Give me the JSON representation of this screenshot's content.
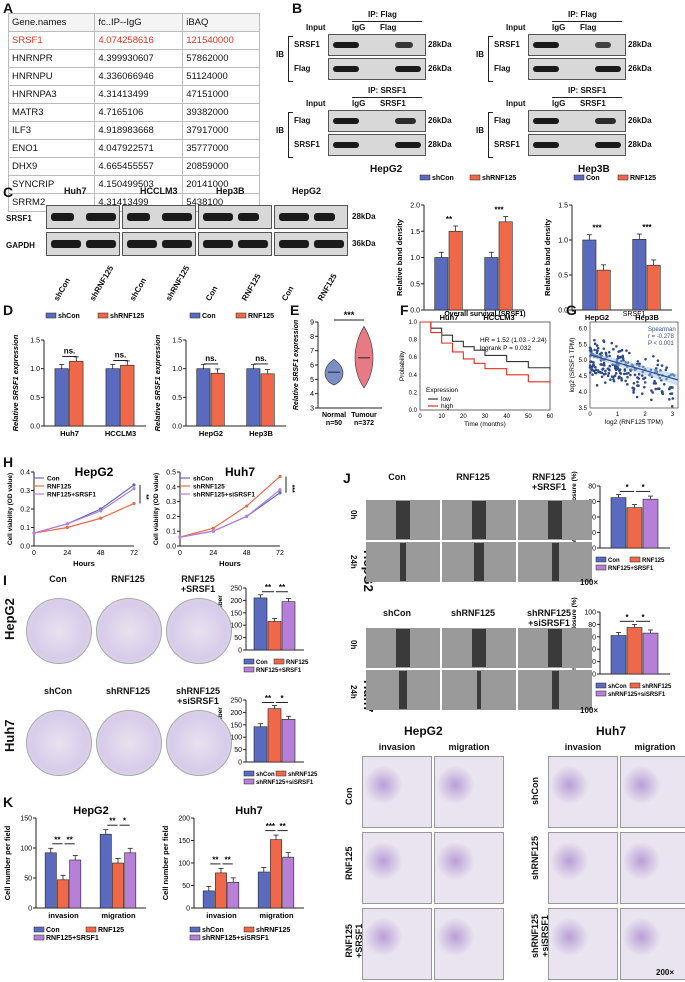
{
  "panels": {
    "A": "A",
    "B": "B",
    "C": "C",
    "D": "D",
    "E": "E",
    "F": "F",
    "G": "G",
    "H": "H",
    "I": "I",
    "J": "J",
    "K": "K"
  },
  "table_a": {
    "headers": [
      "Gene.names",
      "fc..IP--IgG",
      "iBAQ"
    ],
    "rows": [
      [
        "SRSF1",
        "4.074258616",
        "121540000"
      ],
      [
        "HNRNPR",
        "4.399930607",
        "57862000"
      ],
      [
        "HNRNPU",
        "4.336066946",
        "51124000"
      ],
      [
        "HNRNPA3",
        "4.31413499",
        "47151000"
      ],
      [
        "MATR3",
        "4.7165106",
        "39382000"
      ],
      [
        "ILF3",
        "4.918983668",
        "37917000"
      ],
      [
        "ENO1",
        "4.047922571",
        "35777000"
      ],
      [
        "DHX9",
        "4.665455557",
        "20859000"
      ],
      [
        "SYNCRIP",
        "4.150499503",
        "20141000"
      ],
      [
        "SRRM2",
        "4.31413499",
        "5438100"
      ]
    ],
    "highlight_color": "#e03020"
  },
  "panel_b": {
    "ip_flag": "IP: Flag",
    "ip_srsf1": "IP: SRSF1",
    "lanes": [
      "Input",
      "IgG",
      "Flag"
    ],
    "lanes2": [
      "Input",
      "IgG",
      "SRSF1"
    ],
    "ib": "IB",
    "rows_top": [
      "SRSF1",
      "Flag"
    ],
    "rows_bottom": [
      "Flag",
      "SRSF1"
    ],
    "kda_top": [
      "28kDa",
      "26kDa"
    ],
    "kda_bottom": [
      "26kDa",
      "28kDa"
    ],
    "cell_left": "HepG2",
    "cell_right": "Hep3B"
  },
  "panel_c": {
    "cells": [
      "Huh7",
      "HCCLM3",
      "Hep3B",
      "HepG2"
    ],
    "rows": [
      "SRSF1",
      "GAPDH"
    ],
    "kda": [
      "28kDa",
      "36kDa"
    ],
    "lanes": [
      "shCon",
      "shRNF125",
      "shCon",
      "shRNF125",
      "Con",
      "RNF125",
      "Con",
      "RNF125"
    ]
  },
  "colors": {
    "blue": "#5a6bbf",
    "red": "#f0684a",
    "purple": "#b77fd8"
  },
  "chart_data": [
    {
      "id": "C-left",
      "type": "bar",
      "categories": [
        "Huh7",
        "HCCLM3"
      ],
      "series": [
        {
          "name": "shCon",
          "values": [
            1.0,
            1.0
          ]
        },
        {
          "name": "shRNF125",
          "values": [
            1.5,
            1.68
          ]
        }
      ],
      "ylabel": "Relative band density",
      "ylim": [
        0,
        2.0
      ],
      "yticks": [
        "0.0",
        "0.5",
        "1.0",
        "1.5",
        "2.0"
      ],
      "sig": [
        "**",
        "***"
      ]
    },
    {
      "id": "C-right",
      "type": "bar",
      "categories": [
        "HepG2",
        "Hep3B"
      ],
      "series": [
        {
          "name": "Con",
          "values": [
            1.0,
            1.01
          ]
        },
        {
          "name": "RNF125",
          "values": [
            0.57,
            0.64
          ]
        }
      ],
      "ylabel": "Relative band density",
      "ylim": [
        0,
        1.5
      ],
      "yticks": [
        "0.0",
        "0.5",
        "1.0",
        "1.5"
      ],
      "sig": [
        "***",
        "***"
      ]
    },
    {
      "id": "D-left",
      "type": "bar",
      "categories": [
        "Huh7",
        "HCCLM3"
      ],
      "series": [
        {
          "name": "shCon",
          "values": [
            1.0,
            1.0
          ]
        },
        {
          "name": "shRNF125",
          "values": [
            1.13,
            1.06
          ]
        }
      ],
      "ylabel": "Relative SRSF1 expression",
      "ylim": [
        0,
        1.5
      ],
      "yticks": [
        "0.0",
        "0.5",
        "1.0",
        "1.5"
      ],
      "sig": [
        "ns.",
        "ns."
      ]
    },
    {
      "id": "D-right",
      "type": "bar",
      "categories": [
        "HepG2",
        "Hep3B"
      ],
      "series": [
        {
          "name": "Con",
          "values": [
            1.0,
            1.0
          ]
        },
        {
          "name": "RNF125",
          "values": [
            0.92,
            0.91
          ]
        }
      ],
      "ylabel": "Relative SRSF1 expression",
      "ylim": [
        0,
        1.5
      ],
      "yticks": [
        "0.0",
        "0.5",
        "1.0",
        "1.5"
      ],
      "sig": [
        "ns.",
        "ns."
      ]
    },
    {
      "id": "E",
      "type": "violin",
      "categories": [
        "Normal n=50",
        "Tumour n=372"
      ],
      "medians": [
        5.5,
        6.5
      ],
      "ylabel": "Relative SRSF1 expression",
      "ylim": [
        3,
        9
      ],
      "yticks": [
        "3",
        "4",
        "5",
        "6",
        "7",
        "8",
        "9"
      ],
      "sig": "***"
    },
    {
      "id": "F",
      "type": "line",
      "title": "Overall survival (SRSF1)",
      "annotation": [
        "HR = 1.52 (1.03 - 2.24)",
        "logrank P = 0.032"
      ],
      "xlabel": "Time (months)",
      "ylabel": "Probability",
      "xlim": [
        0,
        60
      ],
      "ylim": [
        0,
        1
      ],
      "xticks": [
        "0",
        "10",
        "20",
        "30",
        "40",
        "50",
        "60"
      ],
      "yticks": [
        "0.0",
        "0.2",
        "0.4",
        "0.6",
        "0.8",
        "1.0"
      ],
      "series": [
        {
          "name": "low",
          "color": "#333333",
          "x": [
            0,
            5,
            10,
            15,
            20,
            25,
            30,
            40,
            50,
            60
          ],
          "y": [
            1,
            0.93,
            0.85,
            0.78,
            0.72,
            0.68,
            0.62,
            0.55,
            0.48,
            0.46
          ]
        },
        {
          "name": "high",
          "color": "#e03020",
          "x": [
            0,
            5,
            10,
            15,
            20,
            25,
            30,
            40,
            50,
            60
          ],
          "y": [
            1,
            0.88,
            0.76,
            0.66,
            0.58,
            0.53,
            0.47,
            0.4,
            0.32,
            0.3
          ]
        }
      ],
      "legend_title": "Expression"
    },
    {
      "id": "G",
      "type": "scatter",
      "title": "SRSF1",
      "annotation": [
        "Spearman",
        "r = -0.278",
        "P < 0.001"
      ],
      "xlabel": "log2 (RNF125 TPM)",
      "ylabel": "log2 (SRSF1 TPM)",
      "xlim": [
        0,
        3.2
      ],
      "ylim": [
        3.5,
        6.2
      ],
      "xticks": [
        "0",
        "1",
        "2",
        "3"
      ],
      "yticks": [
        "3.5",
        "4.0",
        "4.5",
        "5.0",
        "5.5",
        "6.0"
      ]
    },
    {
      "id": "H-left",
      "type": "line",
      "title": "HepG2",
      "xlabel": "Hours",
      "ylabel": "Cell viability (OD value)",
      "x": [
        0,
        24,
        48,
        72
      ],
      "ylim": [
        0,
        0.4
      ],
      "yticks": [
        "0.0",
        "0.1",
        "0.2",
        "0.3",
        "0.4"
      ],
      "series": [
        {
          "name": "Con",
          "values": [
            0.07,
            0.12,
            0.2,
            0.33
          ]
        },
        {
          "name": "RNF125",
          "values": [
            0.07,
            0.1,
            0.15,
            0.23
          ]
        },
        {
          "name": "RNF125+SRSF1",
          "values": [
            0.07,
            0.12,
            0.19,
            0.31
          ]
        }
      ],
      "sig": [
        "**",
        "**"
      ]
    },
    {
      "id": "H-right",
      "type": "line",
      "title": "Huh7",
      "xlabel": "Hours",
      "ylabel": "Cell viability (OD value)",
      "x": [
        0,
        24,
        48,
        72
      ],
      "ylim": [
        0,
        0.5
      ],
      "yticks": [
        "0.0",
        "0.1",
        "0.2",
        "0.3",
        "0.4",
        "0.5"
      ],
      "series": [
        {
          "name": "shCon",
          "values": [
            0.06,
            0.1,
            0.2,
            0.36
          ]
        },
        {
          "name": "shRNF125",
          "values": [
            0.06,
            0.12,
            0.27,
            0.47
          ]
        },
        {
          "name": "shRNF125+siSRSF1",
          "values": [
            0.06,
            0.1,
            0.2,
            0.38
          ]
        }
      ],
      "sig": [
        "***",
        "***"
      ]
    },
    {
      "id": "I-top",
      "type": "bar",
      "categories": [
        ""
      ],
      "series": [
        {
          "name": "Con",
          "values": [
            210
          ]
        },
        {
          "name": "RNF125",
          "values": [
            115
          ]
        },
        {
          "name": "RNF125+SRSF1",
          "values": [
            195
          ]
        }
      ],
      "ylabel": "Colony number",
      "ylim": [
        0,
        250
      ],
      "yticks": [
        "0",
        "50",
        "100",
        "150",
        "200",
        "250"
      ],
      "sig": [
        "**",
        "**"
      ]
    },
    {
      "id": "I-bottom",
      "type": "bar",
      "categories": [
        ""
      ],
      "series": [
        {
          "name": "shCon",
          "values": [
            142
          ]
        },
        {
          "name": "shRNF125",
          "values": [
            215
          ]
        },
        {
          "name": "shRNF125+siSRSF1",
          "values": [
            172
          ]
        }
      ],
      "ylabel": "Colony number",
      "ylim": [
        0,
        250
      ],
      "yticks": [
        "0",
        "50",
        "100",
        "150",
        "200",
        "250"
      ],
      "sig": [
        "**",
        "*"
      ]
    },
    {
      "id": "J-top",
      "type": "bar",
      "categories": [
        ""
      ],
      "series": [
        {
          "name": "Con",
          "values": [
            65
          ]
        },
        {
          "name": "RNF125",
          "values": [
            52
          ]
        },
        {
          "name": "RNF125+SRSF1",
          "values": [
            63
          ]
        }
      ],
      "ylabel": "Percent of wound closure (%)",
      "ylim": [
        0,
        80
      ],
      "yticks": [
        "0",
        "20",
        "40",
        "60",
        "80"
      ],
      "sig": [
        "*",
        "*"
      ]
    },
    {
      "id": "J-bottom",
      "type": "bar",
      "categories": [
        ""
      ],
      "series": [
        {
          "name": "shCon",
          "values": [
            62
          ]
        },
        {
          "name": "shRNF125",
          "values": [
            75
          ]
        },
        {
          "name": "shRNF125+siSRSF1",
          "values": [
            66
          ]
        }
      ],
      "ylabel": "Percent of wound closure (%)",
      "ylim": [
        0,
        100
      ],
      "yticks": [
        "0",
        "20",
        "40",
        "60",
        "80",
        "100"
      ],
      "sig": [
        "*",
        "*"
      ]
    },
    {
      "id": "K-left",
      "type": "bar",
      "title": "HepG2",
      "categories": [
        "invasion",
        "migration"
      ],
      "series": [
        {
          "name": "Con",
          "values": [
            92,
            123
          ]
        },
        {
          "name": "RNF125",
          "values": [
            47,
            75
          ]
        },
        {
          "name": "RNF125+SRSF1",
          "values": [
            80,
            92
          ]
        }
      ],
      "ylabel": "Cell number per field",
      "ylim": [
        0,
        150
      ],
      "yticks": [
        "0",
        "50",
        "100",
        "150"
      ],
      "sig": [
        "**",
        "**",
        "**",
        "*"
      ]
    },
    {
      "id": "K-right",
      "type": "bar",
      "title": "Huh7",
      "categories": [
        "invasion",
        "migration"
      ],
      "series": [
        {
          "name": "shCon",
          "values": [
            38,
            80
          ]
        },
        {
          "name": "shRNF125",
          "values": [
            78,
            152
          ]
        },
        {
          "name": "shRNF125+siSRSF1",
          "values": [
            57,
            113
          ]
        }
      ],
      "ylabel": "Cell number per field",
      "ylim": [
        0,
        200
      ],
      "yticks": [
        "0",
        "50",
        "100",
        "150",
        "200"
      ],
      "sig": [
        "**",
        "**",
        "***",
        "**"
      ]
    }
  ],
  "panel_i": {
    "cols_top": [
      "Con",
      "RNF125",
      "RNF125\n+SRSF1"
    ],
    "cols_bottom": [
      "shCon",
      "shRNF125",
      "shRNF125\n+siSRSF1"
    ],
    "rows": [
      "HepG2",
      "Huh7"
    ]
  },
  "panel_j": {
    "cols_top": [
      "Con",
      "RNF125",
      "RNF125\n+SRSF1"
    ],
    "cols_bottom": [
      "shCon",
      "shRNF125",
      "shRNF125\n+siSRSF1"
    ],
    "rows": [
      "HepG2",
      "Huh7"
    ],
    "times": [
      "0h",
      "24h"
    ],
    "mag": "100×"
  },
  "panel_tw": {
    "left_title": "HepG2",
    "right_title": "Huh7",
    "sub": [
      "invasion",
      "migration"
    ],
    "rows_left": [
      "Con",
      "RNF125",
      "RNF125\n+SRSF1"
    ],
    "rows_right": [
      "shCon",
      "shRNF125",
      "shRNF125\n+siSRSF1"
    ],
    "mag": "200×"
  }
}
